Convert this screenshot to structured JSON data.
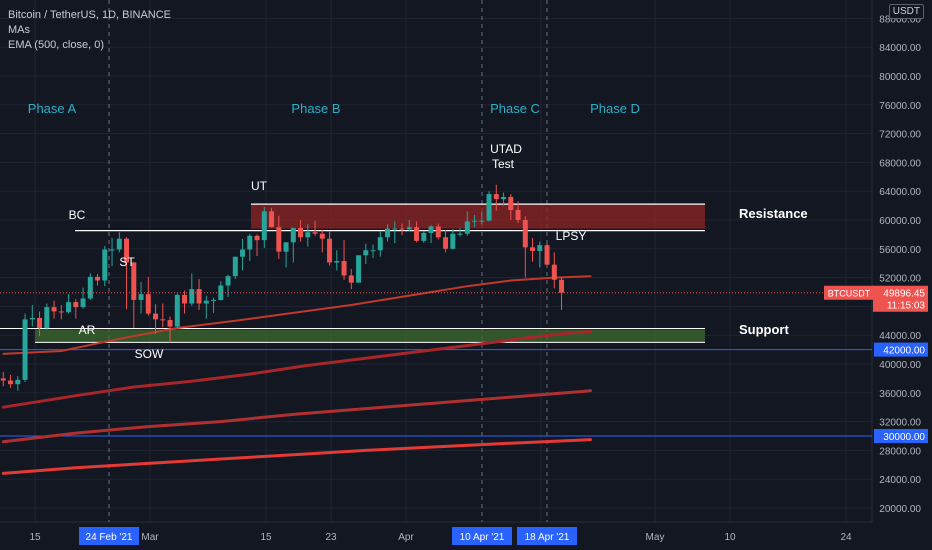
{
  "legend": {
    "symbol": "Bitcoin / TetherUS, 1D, BINANCE",
    "ind1": "MAs",
    "ind2": "EMA (500, close, 0)"
  },
  "currency": "USDT",
  "colors": {
    "background": "#131722",
    "up": "#26a69a",
    "down": "#ef5350",
    "grid": "#1f2433",
    "axis_text": "#b2b5be",
    "phase_text": "#2ab0c8",
    "hline": "#2962ff",
    "resistance_fill": "#8e2424",
    "support_fill": "#3e6b2f"
  },
  "chart_data": {
    "type": "candlestick",
    "title": "Bitcoin / TetherUS, 1D, BINANCE",
    "y_ticks": [
      20000,
      24000,
      28000,
      32000,
      36000,
      40000,
      44000,
      48000,
      52000,
      56000,
      60000,
      64000,
      68000,
      72000,
      76000,
      80000,
      84000,
      88000
    ],
    "x_ticks": [
      "15",
      "Mar",
      "15",
      "23",
      "Apr",
      "15",
      "May",
      "10",
      "24"
    ],
    "x_highlight_labels": [
      "24 Feb '21",
      "10 Apr '21",
      "18 Apr '21"
    ],
    "price_tag": {
      "symbol": "BTCUSDT",
      "price": "49896.45",
      "timer": "11:15:03"
    },
    "level_tags": [
      "42000.00",
      "30000.00"
    ],
    "levels": [
      42000,
      30000
    ],
    "phases": [
      "Phase A",
      "Phase B",
      "Phase C",
      "Phase D"
    ],
    "annotations": [
      "BC",
      "ST",
      "AR",
      "SOW",
      "UT",
      "UTAD",
      "Test",
      "LPSY",
      "Resistance",
      "Support"
    ],
    "resistance_zone": [
      58800,
      62200
    ],
    "support_zone": [
      43000,
      44800
    ],
    "candles": [
      {
        "date": "2021-02-05",
        "o": 38000,
        "h": 38900,
        "l": 36900,
        "c": 37700
      },
      {
        "date": "2021-02-06",
        "o": 37700,
        "h": 38500,
        "l": 36700,
        "c": 37200
      },
      {
        "date": "2021-02-07",
        "o": 37200,
        "h": 38300,
        "l": 36300,
        "c": 37800
      },
      {
        "date": "2021-02-08",
        "o": 37800,
        "h": 47000,
        "l": 37500,
        "c": 46200
      },
      {
        "date": "2021-02-09",
        "o": 46200,
        "h": 48200,
        "l": 45200,
        "c": 46400
      },
      {
        "date": "2021-02-10",
        "o": 46400,
        "h": 47300,
        "l": 43900,
        "c": 45000
      },
      {
        "date": "2021-02-11",
        "o": 45000,
        "h": 48400,
        "l": 44700,
        "c": 47900
      },
      {
        "date": "2021-02-12",
        "o": 47900,
        "h": 48800,
        "l": 46300,
        "c": 47300
      },
      {
        "date": "2021-02-13",
        "o": 47300,
        "h": 48200,
        "l": 46200,
        "c": 47200
      },
      {
        "date": "2021-02-14",
        "o": 47200,
        "h": 49700,
        "l": 47000,
        "c": 48600
      },
      {
        "date": "2021-02-15",
        "o": 48600,
        "h": 49000,
        "l": 46300,
        "c": 47900
      },
      {
        "date": "2021-02-16",
        "o": 47900,
        "h": 50600,
        "l": 47700,
        "c": 49100
      },
      {
        "date": "2021-02-17",
        "o": 49100,
        "h": 52600,
        "l": 48900,
        "c": 52100
      },
      {
        "date": "2021-02-18",
        "o": 52100,
        "h": 52500,
        "l": 50900,
        "c": 51600
      },
      {
        "date": "2021-02-19",
        "o": 51600,
        "h": 56400,
        "l": 50800,
        "c": 55900
      },
      {
        "date": "2021-02-20",
        "o": 55900,
        "h": 57500,
        "l": 53600,
        "c": 55900
      },
      {
        "date": "2021-02-21",
        "o": 55900,
        "h": 58300,
        "l": 55500,
        "c": 57400
      },
      {
        "date": "2021-02-22",
        "o": 57400,
        "h": 57600,
        "l": 47600,
        "c": 54100
      },
      {
        "date": "2021-02-23",
        "o": 54100,
        "h": 54200,
        "l": 45000,
        "c": 48900
      },
      {
        "date": "2021-02-24",
        "o": 48900,
        "h": 51400,
        "l": 47000,
        "c": 49700
      },
      {
        "date": "2021-02-25",
        "o": 49700,
        "h": 52100,
        "l": 46700,
        "c": 47000
      },
      {
        "date": "2021-02-26",
        "o": 47000,
        "h": 48300,
        "l": 44200,
        "c": 46200
      },
      {
        "date": "2021-02-27",
        "o": 46200,
        "h": 48400,
        "l": 45100,
        "c": 46100
      },
      {
        "date": "2021-02-28",
        "o": 46100,
        "h": 46600,
        "l": 43000,
        "c": 45200
      },
      {
        "date": "2021-03-01",
        "o": 45200,
        "h": 49800,
        "l": 45000,
        "c": 49600
      },
      {
        "date": "2021-03-02",
        "o": 49600,
        "h": 50200,
        "l": 47000,
        "c": 48400
      },
      {
        "date": "2021-03-03",
        "o": 48400,
        "h": 52600,
        "l": 48100,
        "c": 50400
      },
      {
        "date": "2021-03-04",
        "o": 50400,
        "h": 51800,
        "l": 47500,
        "c": 48400
      },
      {
        "date": "2021-03-05",
        "o": 48400,
        "h": 49500,
        "l": 46300,
        "c": 48800
      },
      {
        "date": "2021-03-06",
        "o": 48800,
        "h": 49200,
        "l": 47100,
        "c": 48900
      },
      {
        "date": "2021-03-07",
        "o": 48900,
        "h": 51500,
        "l": 48800,
        "c": 50900
      },
      {
        "date": "2021-03-08",
        "o": 50900,
        "h": 52400,
        "l": 49300,
        "c": 52200
      },
      {
        "date": "2021-03-09",
        "o": 52200,
        "h": 54900,
        "l": 51800,
        "c": 54900
      },
      {
        "date": "2021-03-10",
        "o": 54900,
        "h": 57400,
        "l": 53000,
        "c": 55900
      },
      {
        "date": "2021-03-11",
        "o": 55900,
        "h": 58100,
        "l": 54300,
        "c": 57800
      },
      {
        "date": "2021-03-12",
        "o": 57800,
        "h": 58000,
        "l": 55000,
        "c": 57200
      },
      {
        "date": "2021-03-13",
        "o": 57200,
        "h": 61800,
        "l": 56100,
        "c": 61200
      },
      {
        "date": "2021-03-14",
        "o": 61200,
        "h": 61700,
        "l": 59000,
        "c": 59000
      },
      {
        "date": "2021-03-15",
        "o": 59000,
        "h": 60600,
        "l": 54600,
        "c": 55600
      },
      {
        "date": "2021-03-16",
        "o": 55600,
        "h": 56900,
        "l": 53400,
        "c": 56900
      },
      {
        "date": "2021-03-17",
        "o": 56900,
        "h": 58900,
        "l": 54100,
        "c": 58900
      },
      {
        "date": "2021-03-18",
        "o": 58900,
        "h": 60000,
        "l": 57000,
        "c": 57600
      },
      {
        "date": "2021-03-19",
        "o": 57600,
        "h": 59400,
        "l": 56300,
        "c": 58300
      },
      {
        "date": "2021-03-20",
        "o": 58300,
        "h": 59900,
        "l": 57800,
        "c": 58100
      },
      {
        "date": "2021-03-21",
        "o": 58100,
        "h": 58600,
        "l": 55500,
        "c": 57400
      },
      {
        "date": "2021-03-22",
        "o": 57400,
        "h": 58400,
        "l": 53700,
        "c": 54100
      },
      {
        "date": "2021-03-23",
        "o": 54100,
        "h": 55800,
        "l": 53000,
        "c": 54300
      },
      {
        "date": "2021-03-24",
        "o": 54300,
        "h": 57200,
        "l": 51700,
        "c": 52300
      },
      {
        "date": "2021-03-25",
        "o": 52300,
        "h": 53200,
        "l": 50400,
        "c": 51300
      },
      {
        "date": "2021-03-26",
        "o": 51300,
        "h": 55100,
        "l": 51300,
        "c": 55100
      },
      {
        "date": "2021-03-27",
        "o": 55100,
        "h": 56700,
        "l": 53900,
        "c": 55800
      },
      {
        "date": "2021-03-28",
        "o": 55800,
        "h": 56600,
        "l": 54700,
        "c": 55800
      },
      {
        "date": "2021-03-29",
        "o": 55800,
        "h": 58400,
        "l": 54900,
        "c": 57600
      },
      {
        "date": "2021-03-30",
        "o": 57600,
        "h": 59400,
        "l": 57000,
        "c": 58800
      },
      {
        "date": "2021-03-31",
        "o": 58800,
        "h": 59800,
        "l": 56800,
        "c": 58800
      },
      {
        "date": "2021-04-01",
        "o": 58800,
        "h": 59500,
        "l": 57900,
        "c": 58700
      },
      {
        "date": "2021-04-02",
        "o": 58700,
        "h": 60000,
        "l": 58400,
        "c": 59000
      },
      {
        "date": "2021-04-03",
        "o": 59000,
        "h": 59800,
        "l": 56900,
        "c": 57100
      },
      {
        "date": "2021-04-04",
        "o": 57100,
        "h": 58500,
        "l": 56800,
        "c": 58200
      },
      {
        "date": "2021-04-05",
        "o": 58200,
        "h": 59300,
        "l": 56800,
        "c": 59100
      },
      {
        "date": "2021-04-06",
        "o": 59100,
        "h": 59500,
        "l": 57300,
        "c": 57600
      },
      {
        "date": "2021-04-07",
        "o": 57600,
        "h": 58600,
        "l": 55500,
        "c": 56000
      },
      {
        "date": "2021-04-08",
        "o": 56000,
        "h": 58700,
        "l": 55900,
        "c": 58100
      },
      {
        "date": "2021-04-09",
        "o": 58100,
        "h": 58900,
        "l": 57700,
        "c": 58100
      },
      {
        "date": "2021-04-10",
        "o": 58100,
        "h": 61200,
        "l": 57800,
        "c": 59800
      },
      {
        "date": "2021-04-11",
        "o": 59800,
        "h": 60700,
        "l": 59000,
        "c": 59900
      },
      {
        "date": "2021-04-12",
        "o": 59900,
        "h": 61100,
        "l": 59400,
        "c": 59900
      },
      {
        "date": "2021-04-13",
        "o": 59900,
        "h": 64000,
        "l": 59800,
        "c": 63600
      },
      {
        "date": "2021-04-14",
        "o": 63600,
        "h": 64900,
        "l": 61300,
        "c": 62900
      },
      {
        "date": "2021-04-15",
        "o": 62900,
        "h": 63800,
        "l": 62000,
        "c": 63200
      },
      {
        "date": "2021-04-16",
        "o": 63200,
        "h": 63600,
        "l": 60000,
        "c": 61400
      },
      {
        "date": "2021-04-17",
        "o": 61400,
        "h": 62600,
        "l": 59600,
        "c": 60000
      },
      {
        "date": "2021-04-18",
        "o": 60000,
        "h": 60500,
        "l": 52000,
        "c": 56200
      },
      {
        "date": "2021-04-19",
        "o": 56200,
        "h": 57500,
        "l": 54200,
        "c": 55700
      },
      {
        "date": "2021-04-20",
        "o": 55700,
        "h": 57000,
        "l": 53400,
        "c": 56500
      },
      {
        "date": "2021-04-21",
        "o": 56500,
        "h": 56800,
        "l": 53600,
        "c": 53800
      },
      {
        "date": "2021-04-22",
        "o": 53800,
        "h": 55500,
        "l": 50500,
        "c": 51700
      },
      {
        "date": "2021-04-23",
        "o": 51700,
        "h": 52100,
        "l": 47500,
        "c": 49896
      }
    ],
    "series": [
      {
        "name": "MAs",
        "points": [
          [
            0,
            41400
          ],
          [
            8,
            41800
          ],
          [
            16,
            43500
          ],
          [
            24,
            45000
          ],
          [
            32,
            46000
          ],
          [
            40,
            47100
          ],
          [
            48,
            48200
          ],
          [
            56,
            49500
          ],
          [
            64,
            50800
          ],
          [
            70,
            51600
          ],
          [
            76,
            52000
          ],
          [
            81,
            52200
          ]
        ]
      },
      {
        "name": "MAs",
        "points": [
          [
            0,
            34000
          ],
          [
            10,
            35600
          ],
          [
            18,
            36800
          ],
          [
            26,
            37600
          ],
          [
            34,
            38600
          ],
          [
            42,
            39800
          ],
          [
            50,
            40800
          ],
          [
            58,
            41800
          ],
          [
            66,
            42800
          ],
          [
            72,
            43600
          ],
          [
            78,
            44300
          ],
          [
            81,
            44500
          ]
        ]
      },
      {
        "name": "MAs",
        "points": [
          [
            0,
            29200
          ],
          [
            10,
            30400
          ],
          [
            20,
            31300
          ],
          [
            30,
            32000
          ],
          [
            40,
            33000
          ],
          [
            50,
            33800
          ],
          [
            60,
            34600
          ],
          [
            70,
            35400
          ],
          [
            80,
            36200
          ],
          [
            81,
            36300
          ]
        ]
      },
      {
        "name": "EMA (500, close, 0)",
        "points": [
          [
            0,
            24800
          ],
          [
            10,
            25600
          ],
          [
            20,
            26200
          ],
          [
            30,
            26800
          ],
          [
            40,
            27400
          ],
          [
            50,
            28000
          ],
          [
            60,
            28500
          ],
          [
            70,
            29000
          ],
          [
            81,
            29500
          ]
        ]
      }
    ]
  }
}
